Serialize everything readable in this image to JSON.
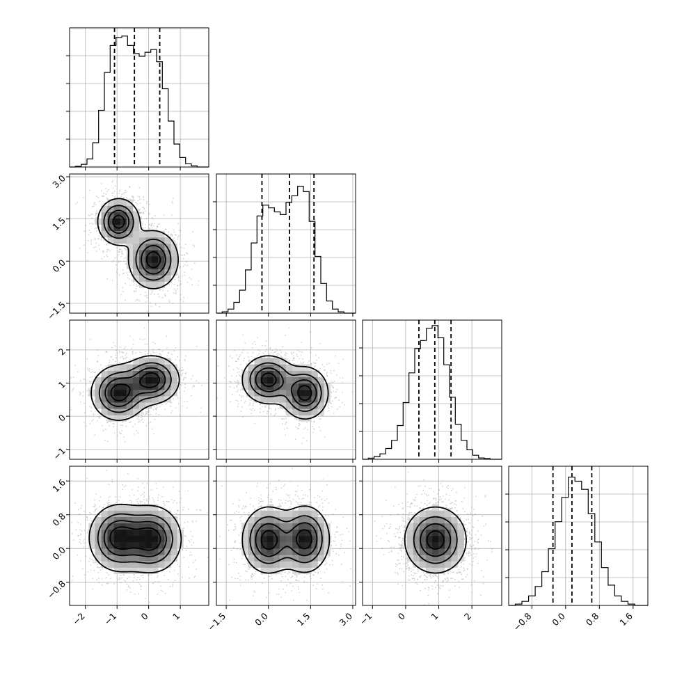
{
  "chart_data": {
    "type": "corner",
    "grid": true,
    "parameters": [
      {
        "range": [
          -2.5,
          1.9
        ],
        "ticks": [
          -2,
          -1,
          0,
          1
        ],
        "tick_labels": [
          "−2",
          "−1",
          "0",
          "1"
        ],
        "hist_bins": [
          0,
          0.005,
          0.02,
          0.06,
          0.18,
          0.42,
          0.7,
          0.9,
          0.96,
          0.97,
          0.9,
          0.84,
          0.82,
          0.85,
          0.87,
          0.78,
          0.58,
          0.34,
          0.17,
          0.07,
          0.025,
          0.008,
          0,
          0
        ],
        "quantiles": [
          -1.08,
          -0.45,
          0.35
        ],
        "blobs": [
          {
            "x": -0.95,
            "y": 1.4,
            "sx": 0.35,
            "sy": 0.45,
            "w": 1
          },
          {
            "x": 0.15,
            "y": 0.05,
            "sx": 0.4,
            "sy": 0.55,
            "w": 1
          }
        ]
      },
      {
        "range": [
          -1.85,
          3.1
        ],
        "ticks": [
          -1.5,
          0,
          1.5,
          3
        ],
        "tick_labels": [
          "−1.5",
          "0.0",
          "1.5",
          "3.0"
        ],
        "hist_bins": [
          0,
          0.01,
          0.03,
          0.08,
          0.17,
          0.32,
          0.52,
          0.72,
          0.8,
          0.78,
          0.75,
          0.73,
          0.82,
          0.87,
          0.94,
          0.9,
          0.68,
          0.42,
          0.22,
          0.09,
          0.03,
          0.01,
          0,
          0
        ],
        "quantiles": [
          -0.23,
          0.75,
          1.62
        ],
        "blobs": [
          {
            "x": 0.1,
            "y": 1.1,
            "sx": 0.4,
            "sy": 0.3,
            "w": 1
          },
          {
            "x": 1.3,
            "y": 0.7,
            "sx": 0.35,
            "sy": 0.35,
            "w": 1
          }
        ]
      },
      {
        "range": [
          -1.3,
          2.9
        ],
        "ticks": [
          -1,
          0,
          1,
          2
        ],
        "tick_labels": [
          "−1",
          "0",
          "1",
          "2"
        ],
        "hist_bins": [
          0,
          0.008,
          0.02,
          0.04,
          0.08,
          0.14,
          0.25,
          0.42,
          0.64,
          0.82,
          0.88,
          0.97,
          0.99,
          0.9,
          0.7,
          0.46,
          0.26,
          0.14,
          0.07,
          0.03,
          0.01,
          0.005,
          0,
          0
        ],
        "quantiles": [
          0.4,
          0.88,
          1.37
        ],
        "blobs": [
          {
            "x": 0.9,
            "y": 0.2,
            "sx": 0.35,
            "sy": 0.3,
            "w": 1
          }
        ]
      },
      {
        "range": [
          -1.35,
          1.95
        ],
        "ticks": [
          -0.8,
          0,
          0.8,
          1.6
        ],
        "tick_labels": [
          "−0.8",
          "0.0",
          "0.8",
          "1.6"
        ],
        "hist_bins": [
          0,
          0.01,
          0.03,
          0.07,
          0.14,
          0.25,
          0.42,
          0.62,
          0.8,
          0.95,
          0.92,
          0.86,
          0.68,
          0.47,
          0.28,
          0.15,
          0.07,
          0.03,
          0.01,
          0,
          0
        ],
        "quantiles": [
          -0.3,
          0.15,
          0.62
        ],
        "blobs": [
          {
            "x": 0.2,
            "y": 0.2,
            "sx": 0.4,
            "sy": 0.35,
            "w": 1
          }
        ]
      }
    ],
    "pairs": [
      {
        "row": 1,
        "col": 0,
        "blobs": [
          {
            "x": -0.95,
            "y": 1.4,
            "sx": 0.32,
            "sy": 0.4,
            "w": 1
          },
          {
            "x": 0.15,
            "y": 0.05,
            "sx": 0.38,
            "sy": 0.5,
            "w": 1
          }
        ]
      },
      {
        "row": 2,
        "col": 0,
        "blobs": [
          {
            "x": -0.95,
            "y": 0.7,
            "sx": 0.42,
            "sy": 0.4,
            "w": 1
          },
          {
            "x": 0.1,
            "y": 1.1,
            "sx": 0.42,
            "sy": 0.35,
            "w": 1
          }
        ]
      },
      {
        "row": 2,
        "col": 1,
        "blobs": [
          {
            "x": 0.0,
            "y": 1.1,
            "sx": 0.45,
            "sy": 0.35,
            "w": 1
          },
          {
            "x": 1.3,
            "y": 0.7,
            "sx": 0.4,
            "sy": 0.38,
            "w": 1
          }
        ]
      },
      {
        "row": 3,
        "col": 0,
        "blobs": [
          {
            "x": -0.95,
            "y": 0.25,
            "sx": 0.45,
            "sy": 0.38,
            "w": 1
          },
          {
            "x": 0.1,
            "y": 0.22,
            "sx": 0.45,
            "sy": 0.38,
            "w": 1
          }
        ]
      },
      {
        "row": 3,
        "col": 1,
        "blobs": [
          {
            "x": 0.0,
            "y": 0.2,
            "sx": 0.45,
            "sy": 0.38,
            "w": 1
          },
          {
            "x": 1.3,
            "y": 0.22,
            "sx": 0.42,
            "sy": 0.38,
            "w": 1
          }
        ]
      },
      {
        "row": 3,
        "col": 2,
        "blobs": [
          {
            "x": 0.9,
            "y": 0.2,
            "sx": 0.45,
            "sy": 0.38,
            "w": 1
          }
        ]
      }
    ]
  }
}
